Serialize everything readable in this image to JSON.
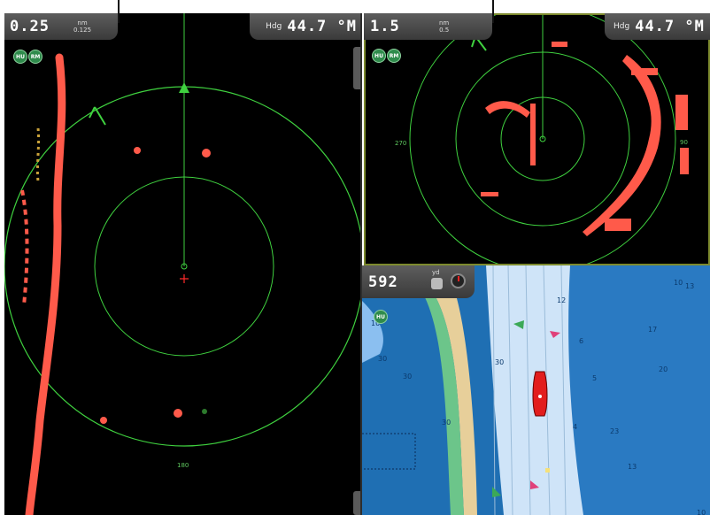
{
  "left_radar": {
    "range_value": "0.25",
    "range_unit": "nm",
    "range_sub": "0.125",
    "heading_label": "Hdg",
    "heading_value": "44.7 °M",
    "mode_badges": [
      "HU",
      "RM"
    ],
    "bearing_label_bottom": "180"
  },
  "right_radar": {
    "range_value": "1.5",
    "range_unit": "nm",
    "range_sub": "0.5",
    "heading_label": "Hdg",
    "heading_value": "44.7 °M",
    "mode_badges": [
      "HU",
      "RM"
    ],
    "bearing_label_left": "270",
    "bearing_label_right": "90"
  },
  "chart": {
    "depth_value": "592",
    "depth_unit": "yd",
    "mode_badge": "HU",
    "soundings": [
      "10",
      "10",
      "30",
      "30",
      "30",
      "12",
      "6",
      "5",
      "17",
      "13",
      "20",
      "30",
      "4",
      "23",
      "13",
      "10"
    ]
  },
  "colors": {
    "radar_ring": "#3fd13f",
    "radar_echo": "#ff5a4a",
    "water_deep": "#1f6fb3",
    "water_shallow": "#8bbff0",
    "channel": "#cfe4f8",
    "land": "#e7cf9a",
    "green_band": "#6cc58a"
  }
}
